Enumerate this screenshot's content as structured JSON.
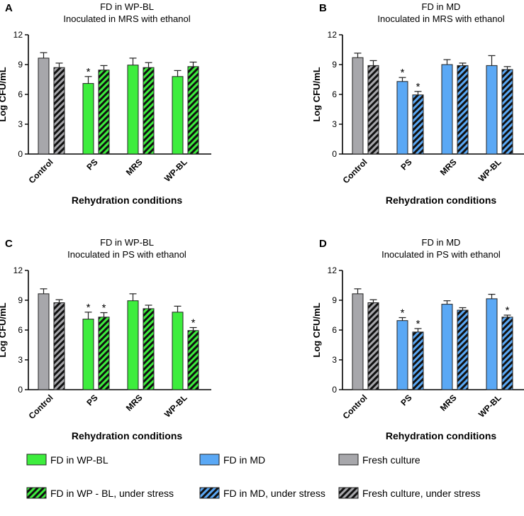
{
  "figure": {
    "legend": [
      {
        "label": "FD in WP-BL",
        "swatch": "green"
      },
      {
        "label": "FD in WP - BL, under stress",
        "swatch": "green-hatched"
      },
      {
        "label": "FD in MD",
        "swatch": "blue"
      },
      {
        "label": "FD in MD, under stress",
        "swatch": "blue-hatched"
      },
      {
        "label": "Fresh culture",
        "swatch": "gray"
      },
      {
        "label": "Fresh culture, under stress",
        "swatch": "gray-hatched"
      }
    ],
    "colors": {
      "green": "#3ded3d",
      "blue": "#5aa8f5",
      "gray": "#a7a7ab",
      "hatch": "#111111"
    }
  },
  "chart_data": [
    {
      "panel": "A",
      "type": "bar",
      "title": [
        "FD in WP-BL",
        "Inoculated in MRS with ethanol"
      ],
      "xlabel": "Rehydration conditions",
      "ylabel": "Log CFU/mL",
      "ylim": [
        0,
        12
      ],
      "yticks": [
        "0",
        "3",
        "6",
        "9",
        "12"
      ],
      "categories": [
        "Control",
        "PS",
        "MRS",
        "WP-BL"
      ],
      "fd_color": "green",
      "bars": [
        {
          "value": 9.65,
          "error": 0.55,
          "sig": false,
          "color": "gray",
          "hatched": false
        },
        {
          "value": 8.7,
          "error": 0.45,
          "sig": false,
          "color": "gray",
          "hatched": true
        },
        {
          "value": 7.1,
          "error": 0.7,
          "sig": true,
          "color": "green",
          "hatched": false
        },
        {
          "value": 8.45,
          "error": 0.45,
          "sig": false,
          "color": "green",
          "hatched": true
        },
        {
          "value": 8.95,
          "error": 0.7,
          "sig": false,
          "color": "green",
          "hatched": false
        },
        {
          "value": 8.7,
          "error": 0.5,
          "sig": false,
          "color": "green",
          "hatched": true
        },
        {
          "value": 7.8,
          "error": 0.6,
          "sig": false,
          "color": "green",
          "hatched": false
        },
        {
          "value": 8.8,
          "error": 0.45,
          "sig": false,
          "color": "green",
          "hatched": true
        }
      ]
    },
    {
      "panel": "B",
      "type": "bar",
      "title": [
        "FD in MD",
        "Inoculated in MRS with ethanol"
      ],
      "xlabel": "Rehydration conditions",
      "ylabel": "Log CFU/mL",
      "ylim": [
        0,
        12
      ],
      "yticks": [
        "0",
        "3",
        "6",
        "9",
        "12"
      ],
      "categories": [
        "Control",
        "PS",
        "MRS",
        "WP-BL"
      ],
      "fd_color": "blue",
      "bars": [
        {
          "value": 9.7,
          "error": 0.45,
          "sig": false,
          "color": "gray",
          "hatched": false
        },
        {
          "value": 8.9,
          "error": 0.5,
          "sig": false,
          "color": "gray",
          "hatched": true
        },
        {
          "value": 7.3,
          "error": 0.4,
          "sig": true,
          "color": "blue",
          "hatched": false
        },
        {
          "value": 5.95,
          "error": 0.35,
          "sig": true,
          "color": "blue",
          "hatched": true
        },
        {
          "value": 9.0,
          "error": 0.5,
          "sig": false,
          "color": "blue",
          "hatched": false
        },
        {
          "value": 8.9,
          "error": 0.25,
          "sig": false,
          "color": "blue",
          "hatched": true
        },
        {
          "value": 8.9,
          "error": 1.0,
          "sig": false,
          "color": "blue",
          "hatched": false
        },
        {
          "value": 8.5,
          "error": 0.3,
          "sig": false,
          "color": "blue",
          "hatched": true
        }
      ]
    },
    {
      "panel": "C",
      "type": "bar",
      "title": [
        "FD in WP-BL",
        "Inoculated in PS with ethanol"
      ],
      "xlabel": "Rehydration conditions",
      "ylabel": "Log CFU/mL",
      "ylim": [
        0,
        12
      ],
      "yticks": [
        "0",
        "3",
        "6",
        "9",
        "12"
      ],
      "categories": [
        "Control",
        "PS",
        "MRS",
        "WP-BL"
      ],
      "fd_color": "green",
      "bars": [
        {
          "value": 9.65,
          "error": 0.5,
          "sig": false,
          "color": "gray",
          "hatched": false
        },
        {
          "value": 8.75,
          "error": 0.3,
          "sig": false,
          "color": "gray",
          "hatched": true
        },
        {
          "value": 7.1,
          "error": 0.7,
          "sig": true,
          "color": "green",
          "hatched": false
        },
        {
          "value": 7.3,
          "error": 0.45,
          "sig": true,
          "color": "green",
          "hatched": true
        },
        {
          "value": 8.95,
          "error": 0.7,
          "sig": false,
          "color": "green",
          "hatched": false
        },
        {
          "value": 8.15,
          "error": 0.35,
          "sig": false,
          "color": "green",
          "hatched": true
        },
        {
          "value": 7.8,
          "error": 0.6,
          "sig": false,
          "color": "green",
          "hatched": false
        },
        {
          "value": 5.95,
          "error": 0.3,
          "sig": true,
          "color": "green",
          "hatched": true
        }
      ]
    },
    {
      "panel": "D",
      "type": "bar",
      "title": [
        "FD in MD",
        "Inoculated in PS with ethanol"
      ],
      "xlabel": "Rehydration conditions",
      "ylabel": "Log CFU/mL",
      "ylim": [
        0,
        12
      ],
      "yticks": [
        "0",
        "3",
        "6",
        "9",
        "12"
      ],
      "categories": [
        "Control",
        "PS",
        "MRS",
        "WP-BL"
      ],
      "fd_color": "blue",
      "bars": [
        {
          "value": 9.65,
          "error": 0.5,
          "sig": false,
          "color": "gray",
          "hatched": false
        },
        {
          "value": 8.75,
          "error": 0.3,
          "sig": false,
          "color": "gray",
          "hatched": true
        },
        {
          "value": 6.95,
          "error": 0.3,
          "sig": true,
          "color": "blue",
          "hatched": false
        },
        {
          "value": 5.8,
          "error": 0.35,
          "sig": true,
          "color": "blue",
          "hatched": true
        },
        {
          "value": 8.6,
          "error": 0.35,
          "sig": false,
          "color": "blue",
          "hatched": false
        },
        {
          "value": 8.0,
          "error": 0.25,
          "sig": false,
          "color": "blue",
          "hatched": true
        },
        {
          "value": 9.15,
          "error": 0.45,
          "sig": false,
          "color": "blue",
          "hatched": false
        },
        {
          "value": 7.3,
          "error": 0.2,
          "sig": true,
          "color": "blue",
          "hatched": true
        }
      ]
    }
  ]
}
